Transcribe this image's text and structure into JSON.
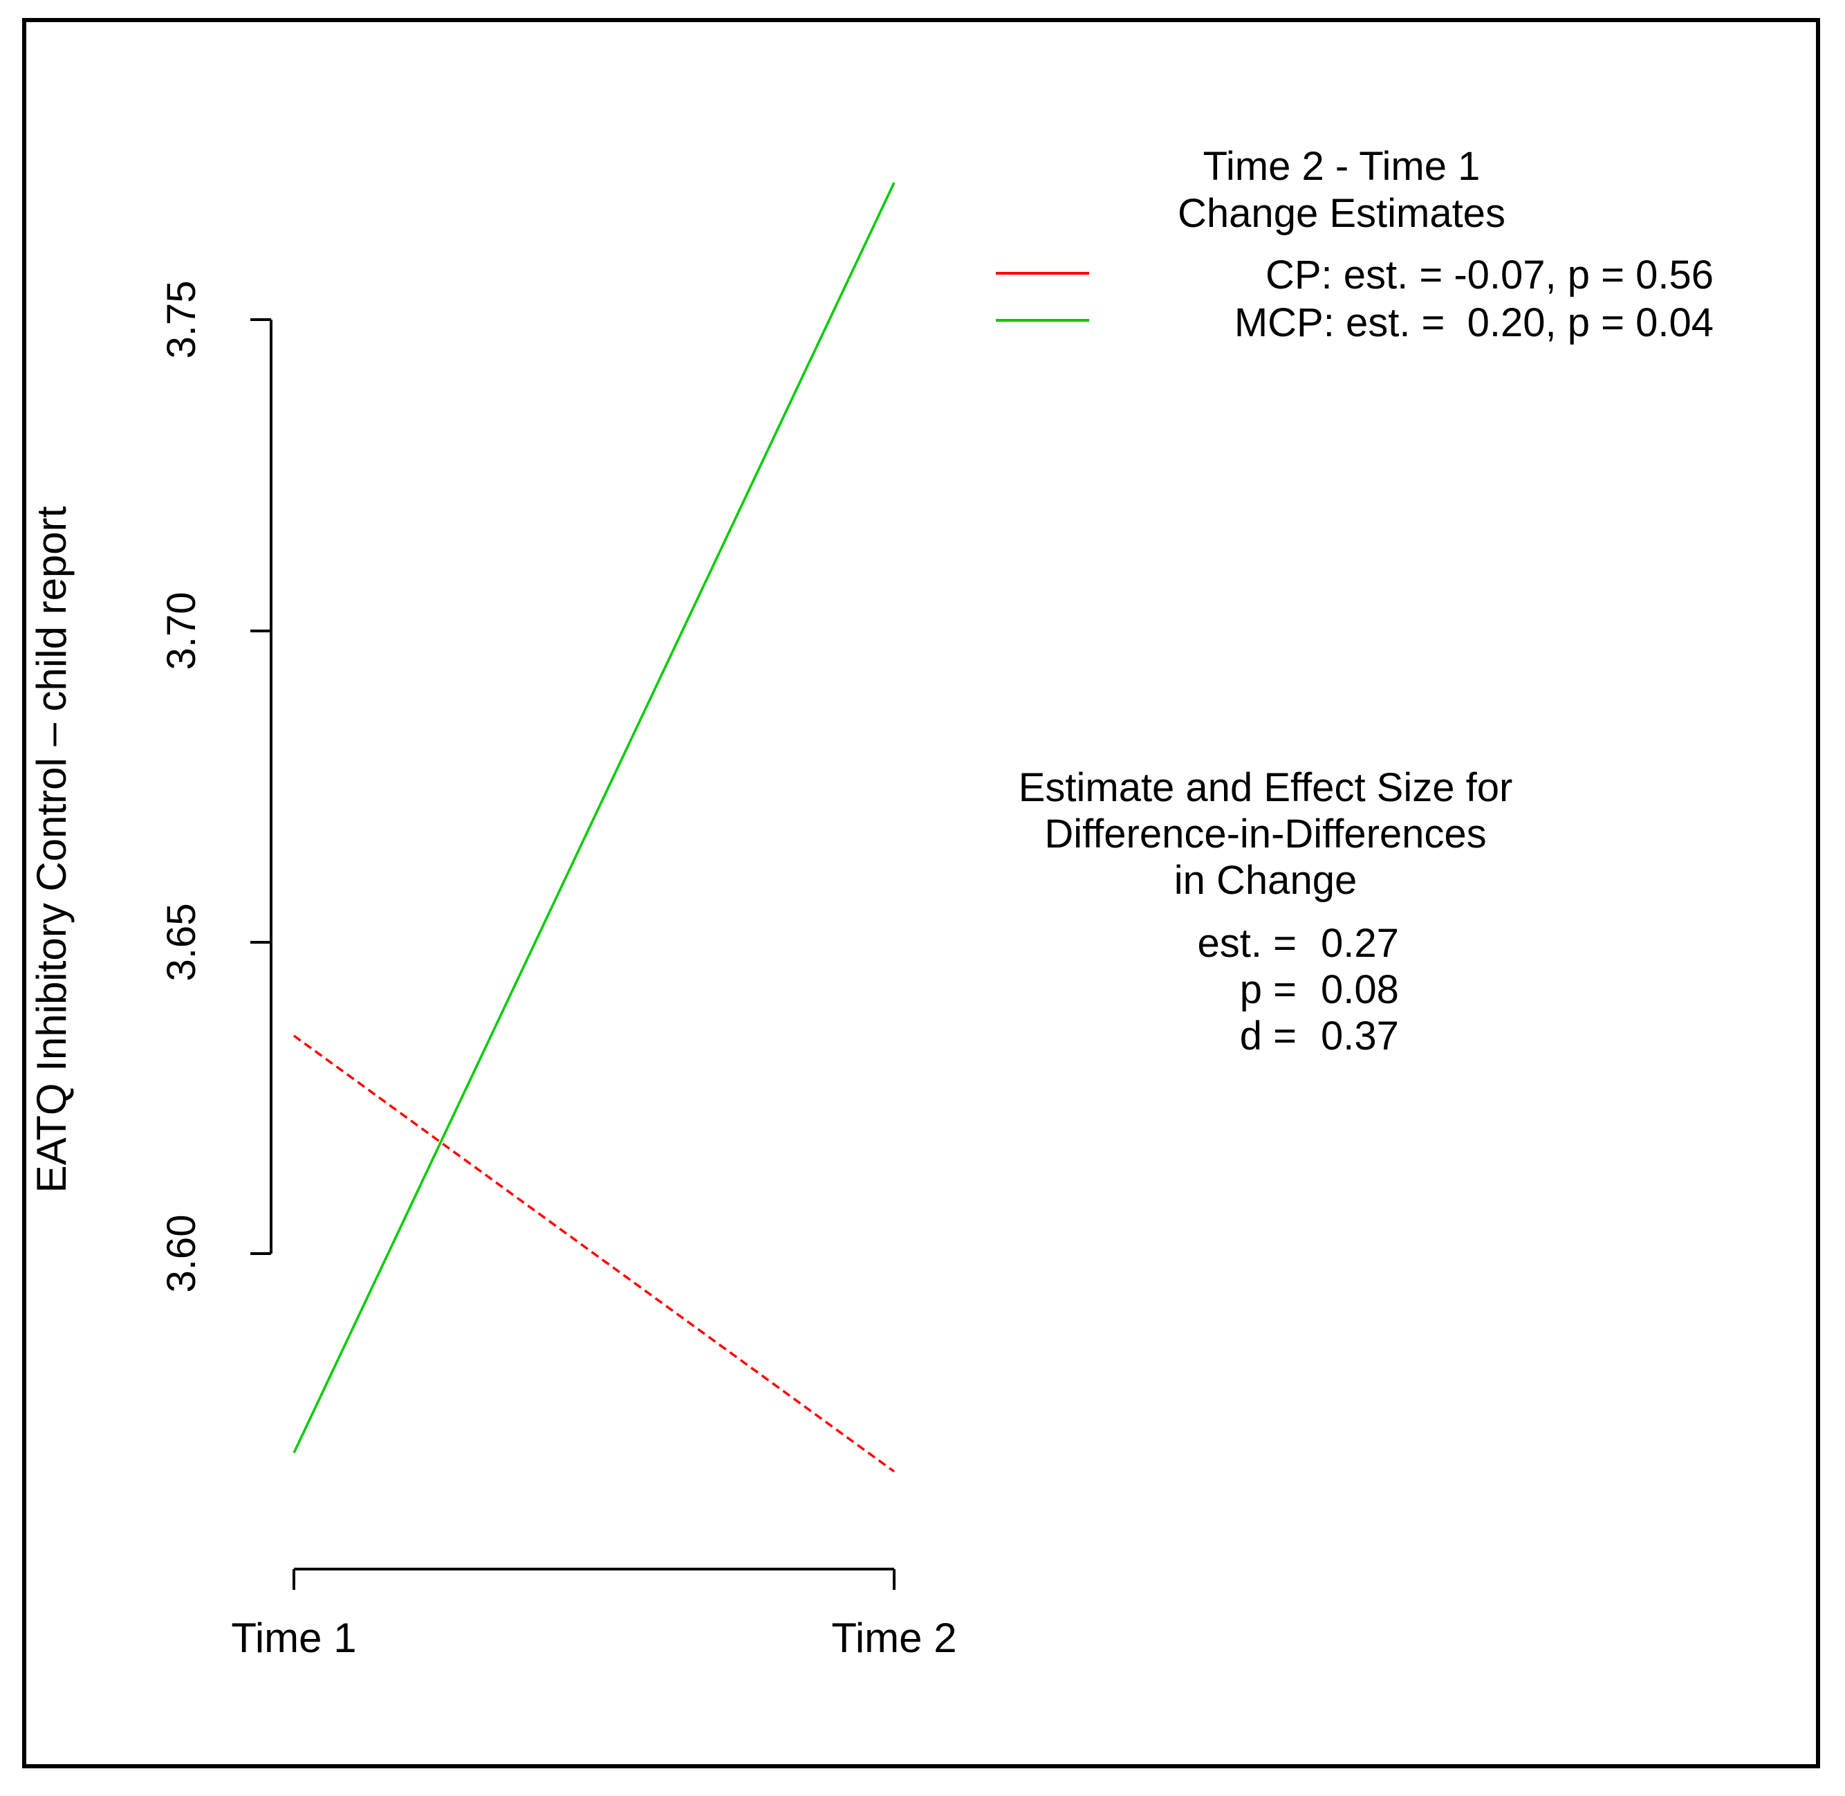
{
  "chart_data": {
    "type": "line",
    "title": "",
    "xlabel": "",
    "ylabel": "EATQ Inhibitory Control – child report",
    "categories": [
      "Time 1",
      "Time 2"
    ],
    "yticks": [
      "3.60",
      "3.65",
      "3.70",
      "3.75"
    ],
    "ylim": [
      3.55,
      3.78
    ],
    "series": [
      {
        "name": "CP",
        "values": [
          3.635,
          3.565
        ],
        "color": "#ff0000",
        "dash": true
      },
      {
        "name": "MCP",
        "values": [
          3.568,
          3.772
        ],
        "color": "#00cc00",
        "dash": false
      }
    ],
    "legend": {
      "title_lines": [
        "Time 2 - Time 1",
        "Change Estimates"
      ],
      "entries": [
        "CP: est. = -0.07, p = 0.56",
        "MCP: est. =  0.20, p = 0.04"
      ],
      "placement": "top-right"
    },
    "annotation": {
      "title_lines": [
        "Estimate and Effect Size for",
        "Difference-in-Differences",
        "in Change"
      ],
      "stats": [
        {
          "label": "est. =",
          "value": "0.27"
        },
        {
          "label": "p =",
          "value": "0.08"
        },
        {
          "label": "d =",
          "value": "0.37"
        }
      ]
    },
    "grid": false
  }
}
